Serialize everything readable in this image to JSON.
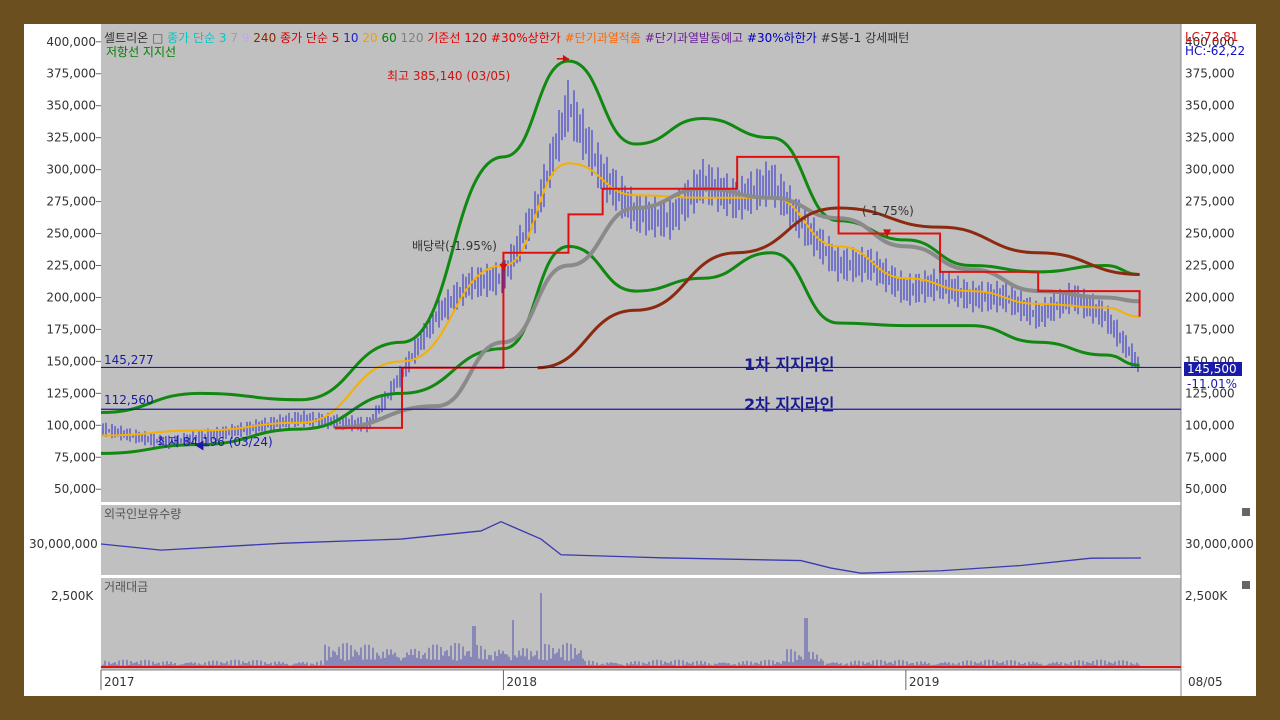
{
  "legend": [
    {
      "text": "셀트리온",
      "color": "#333333"
    },
    {
      "text": "□",
      "color": "#555555"
    },
    {
      "text": "종가 단순 3",
      "color": "#00c8c8"
    },
    {
      "text": "7",
      "color": "#a0a0a0"
    },
    {
      "text": "9",
      "color": "#c8a0ff"
    },
    {
      "text": "240",
      "color": "#8b2500"
    },
    {
      "text": "종가 단순 5",
      "color": "#d00000"
    },
    {
      "text": "10",
      "color": "#2020d0"
    },
    {
      "text": "20",
      "color": "#f0a000"
    },
    {
      "text": "60",
      "color": "#008000"
    },
    {
      "text": "120",
      "color": "#808080"
    },
    {
      "text": "기준선 120",
      "color": "#e00000"
    },
    {
      "text": "#30%상한가",
      "color": "#e00000"
    },
    {
      "text": "#단기과열적출",
      "color": "#ff6600"
    },
    {
      "text": "#단기과열발동예고",
      "color": "#6a1b9a"
    },
    {
      "text": "#30%하한가",
      "color": "#0000c0"
    },
    {
      "text": "#S봉-1 강세패턴",
      "color": "#333333"
    }
  ],
  "legend2": {
    "text": "저항선 지지선",
    "color": "#008000"
  },
  "lc_label": "LC:72,81",
  "hc_label": "HC:-62,22",
  "annotations": {
    "high": "최고 385,140 (03/05)",
    "low": "최저 84,196 (03/24)",
    "dividend": "배당락(-1.95%)",
    "pct": "(-1.75%)",
    "support1_title": "1차 지지라인",
    "support2_title": "2차 지지라인",
    "support1_value": "145,277",
    "support2_value": "112,560",
    "last_price": "145,500",
    "last_change": "-11.01%"
  },
  "panel2_title": "외국인보유수량",
  "panel2_tick": "30,000,000",
  "panel3_title": "거래대금",
  "panel3_tick": "2,500K",
  "date_corner": "08/05",
  "colors": {
    "candle": "#2a2ad0",
    "ma_yellow": "#f5b000",
    "band": "#118811",
    "ma_gray": "#8a8a8a",
    "ma_brown": "#8b2a10",
    "baseline": "#e01010",
    "support": "#1a1aa8",
    "foreign": "#3a3ab0",
    "volume": "#5050b0",
    "vol_line": "#e01010"
  },
  "chart_data": {
    "type": "line",
    "title": "셀트리온",
    "x_range": [
      "2017-01",
      "2019-08"
    ],
    "x_ticks": [
      "2017",
      "2018",
      "2019"
    ],
    "ylim": [
      40000,
      410000
    ],
    "y_ticks": [
      "400,000",
      "375,000",
      "350,000",
      "325,000",
      "300,000",
      "275,000",
      "250,000",
      "225,000",
      "200,000",
      "175,000",
      "150,000",
      "125,000",
      "100,000",
      "75,000",
      "50,000"
    ],
    "series": [
      {
        "x": [
          "2017-01",
          "2017-03",
          "2017-05",
          "2017-07",
          "2017-09",
          "2017-10",
          "2017-11",
          "2017-12",
          "2018-01",
          "2018-02",
          "2018-03",
          "2018-04",
          "2018-05",
          "2018-06",
          "2018-07",
          "2018-08",
          "2018-09",
          "2018-10",
          "2018-11",
          "2018-12",
          "2019-01",
          "2019-02",
          "2019-03",
          "2019-04",
          "2019-05",
          "2019-06",
          "2019-07",
          "2019-08"
        ],
        "y": [
          97000,
          86000,
          95000,
          105000,
          100000,
          140000,
          185000,
          210000,
          215000,
          270000,
          350000,
          295000,
          265000,
          260000,
          290000,
          275000,
          290000,
          255000,
          225000,
          225000,
          205000,
          210000,
          200000,
          200000,
          185000,
          200000,
          185000,
          145500
        ]
      },
      {
        "x": [
          "2017-01",
          "2017-04",
          "2017-07",
          "2017-10",
          "2018-01",
          "2018-03",
          "2018-05",
          "2018-07",
          "2018-09",
          "2018-11",
          "2019-01",
          "2019-03",
          "2019-05",
          "2019-07",
          "2019-08"
        ],
        "y": [
          92000,
          96000,
          102000,
          150000,
          225000,
          305000,
          280000,
          278000,
          278000,
          240000,
          215000,
          205000,
          195000,
          192000,
          185000
        ]
      },
      {
        "x": [
          "2017-01",
          "2017-04",
          "2017-07",
          "2017-10",
          "2018-01",
          "2018-03",
          "2018-05",
          "2018-07",
          "2018-09",
          "2018-11",
          "2019-01",
          "2019-03",
          "2019-05",
          "2019-07",
          "2019-08"
        ],
        "y": [
          110000,
          125000,
          120000,
          165000,
          310000,
          385000,
          320000,
          340000,
          325000,
          260000,
          245000,
          225000,
          220000,
          225000,
          218000
        ]
      },
      {
        "x": [
          "2017-01",
          "2017-04",
          "2017-07",
          "2017-10",
          "2018-01",
          "2018-03",
          "2018-05",
          "2018-07",
          "2018-09",
          "2018-11",
          "2019-01",
          "2019-03",
          "2019-05",
          "2019-07",
          "2019-08"
        ],
        "y": [
          78000,
          85000,
          97000,
          125000,
          160000,
          240000,
          205000,
          215000,
          235000,
          180000,
          178000,
          178000,
          165000,
          155000,
          147000
        ]
      },
      {
        "x": [
          "2017-08",
          "2017-11",
          "2018-01",
          "2018-03",
          "2018-05",
          "2018-07",
          "2018-09",
          "2018-11",
          "2019-01",
          "2019-03",
          "2019-05",
          "2019-07",
          "2019-08"
        ],
        "y": [
          98000,
          115000,
          165000,
          225000,
          270000,
          285000,
          278000,
          262000,
          240000,
          222000,
          205000,
          200000,
          197000
        ]
      },
      {
        "x": [
          "2018-02",
          "2018-05",
          "2018-08",
          "2018-11",
          "2019-02",
          "2019-05",
          "2019-08"
        ],
        "y": [
          145000,
          190000,
          235000,
          270000,
          255000,
          235000,
          218000
        ]
      },
      {
        "x": [
          "2017-08",
          "2017-10",
          "2018-01",
          "2018-03",
          "2018-04",
          "2018-08",
          "2018-11",
          "2019-02",
          "2019-05",
          "2019-08"
        ],
        "y": [
          98000,
          145000,
          235000,
          265000,
          285000,
          310000,
          250000,
          220000,
          205000,
          185000
        ]
      }
    ],
    "support_lines": [
      145277,
      112560
    ],
    "highlights": [
      {
        "label": "최고",
        "x": "2018-03-05",
        "y": 385140
      },
      {
        "label": "최저",
        "x": "2017-03-24",
        "y": 84196
      }
    ]
  }
}
